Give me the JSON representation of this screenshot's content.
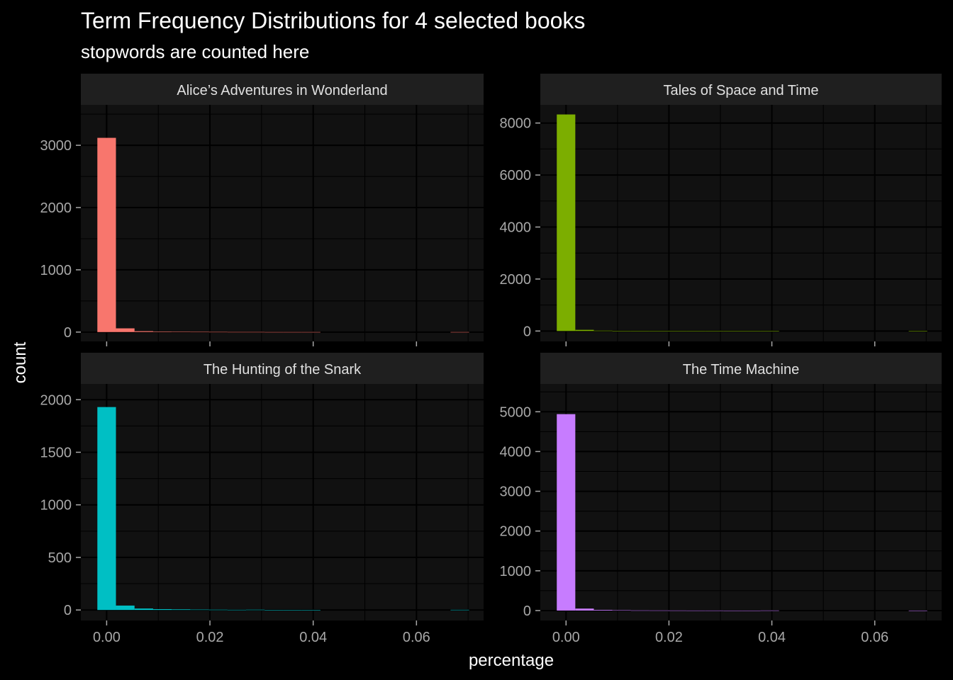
{
  "chart_data": {
    "type": "bar",
    "title": "Term Frequency Distributions for 4 selected books",
    "subtitle": "stopwords are counted here",
    "xlabel": "percentage",
    "ylabel": "count",
    "xlim": [
      -0.005,
      0.073
    ],
    "x_ticks": [
      0.0,
      0.02,
      0.04,
      0.06
    ],
    "x_tick_labels": [
      "0.00",
      "0.02",
      "0.04",
      "0.06"
    ],
    "bin_width": 0.0036,
    "bin_starts": [
      -0.0018,
      0.0018,
      0.0054,
      0.009,
      0.0126,
      0.0162,
      0.0198,
      0.0234,
      0.027,
      0.0306,
      0.0342,
      0.0378,
      0.0414,
      0.045,
      0.0486,
      0.0522,
      0.0558,
      0.0594,
      0.063,
      0.0666
    ],
    "facets": [
      {
        "name": "Alice’s Adventures in Wonderland",
        "color": "#f8766d",
        "ylim": [
          -150,
          3650
        ],
        "y_ticks": [
          0,
          1000,
          2000,
          3000
        ],
        "y_tick_labels": [
          "0",
          "1000",
          "2000",
          "3000"
        ],
        "counts": [
          3120,
          60,
          14,
          8,
          6,
          4,
          3,
          2,
          2,
          1,
          1,
          1,
          0,
          0,
          0,
          0,
          0,
          0,
          0,
          1
        ]
      },
      {
        "name": "Tales of Space and Time",
        "color": "#7cae00",
        "ylim": [
          -400,
          8700
        ],
        "y_ticks": [
          0,
          2000,
          4000,
          6000,
          8000
        ],
        "y_tick_labels": [
          "0",
          "2000",
          "4000",
          "6000",
          "8000"
        ],
        "counts": [
          8330,
          45,
          15,
          8,
          5,
          3,
          2,
          2,
          1,
          1,
          1,
          1,
          0,
          0,
          0,
          0,
          0,
          0,
          0,
          1
        ]
      },
      {
        "name": "The Hunting of the Snark",
        "color": "#00bfc4",
        "ylim": [
          -100,
          2150
        ],
        "y_ticks": [
          0,
          500,
          1000,
          1500,
          2000
        ],
        "y_tick_labels": [
          "0",
          "500",
          "1000",
          "1500",
          "2000"
        ],
        "counts": [
          1930,
          42,
          14,
          8,
          6,
          4,
          3,
          2,
          3,
          1,
          1,
          1,
          0,
          0,
          0,
          0,
          0,
          0,
          0,
          2
        ]
      },
      {
        "name": "The Time Machine",
        "color": "#c77cff",
        "ylim": [
          -250,
          5700
        ],
        "y_ticks": [
          0,
          1000,
          2000,
          3000,
          4000,
          5000
        ],
        "y_tick_labels": [
          "0",
          "1000",
          "2000",
          "3000",
          "4000",
          "5000"
        ],
        "counts": [
          4940,
          50,
          16,
          9,
          5,
          4,
          3,
          2,
          2,
          1,
          1,
          3,
          0,
          0,
          0,
          0,
          0,
          0,
          0,
          1
        ]
      }
    ]
  }
}
